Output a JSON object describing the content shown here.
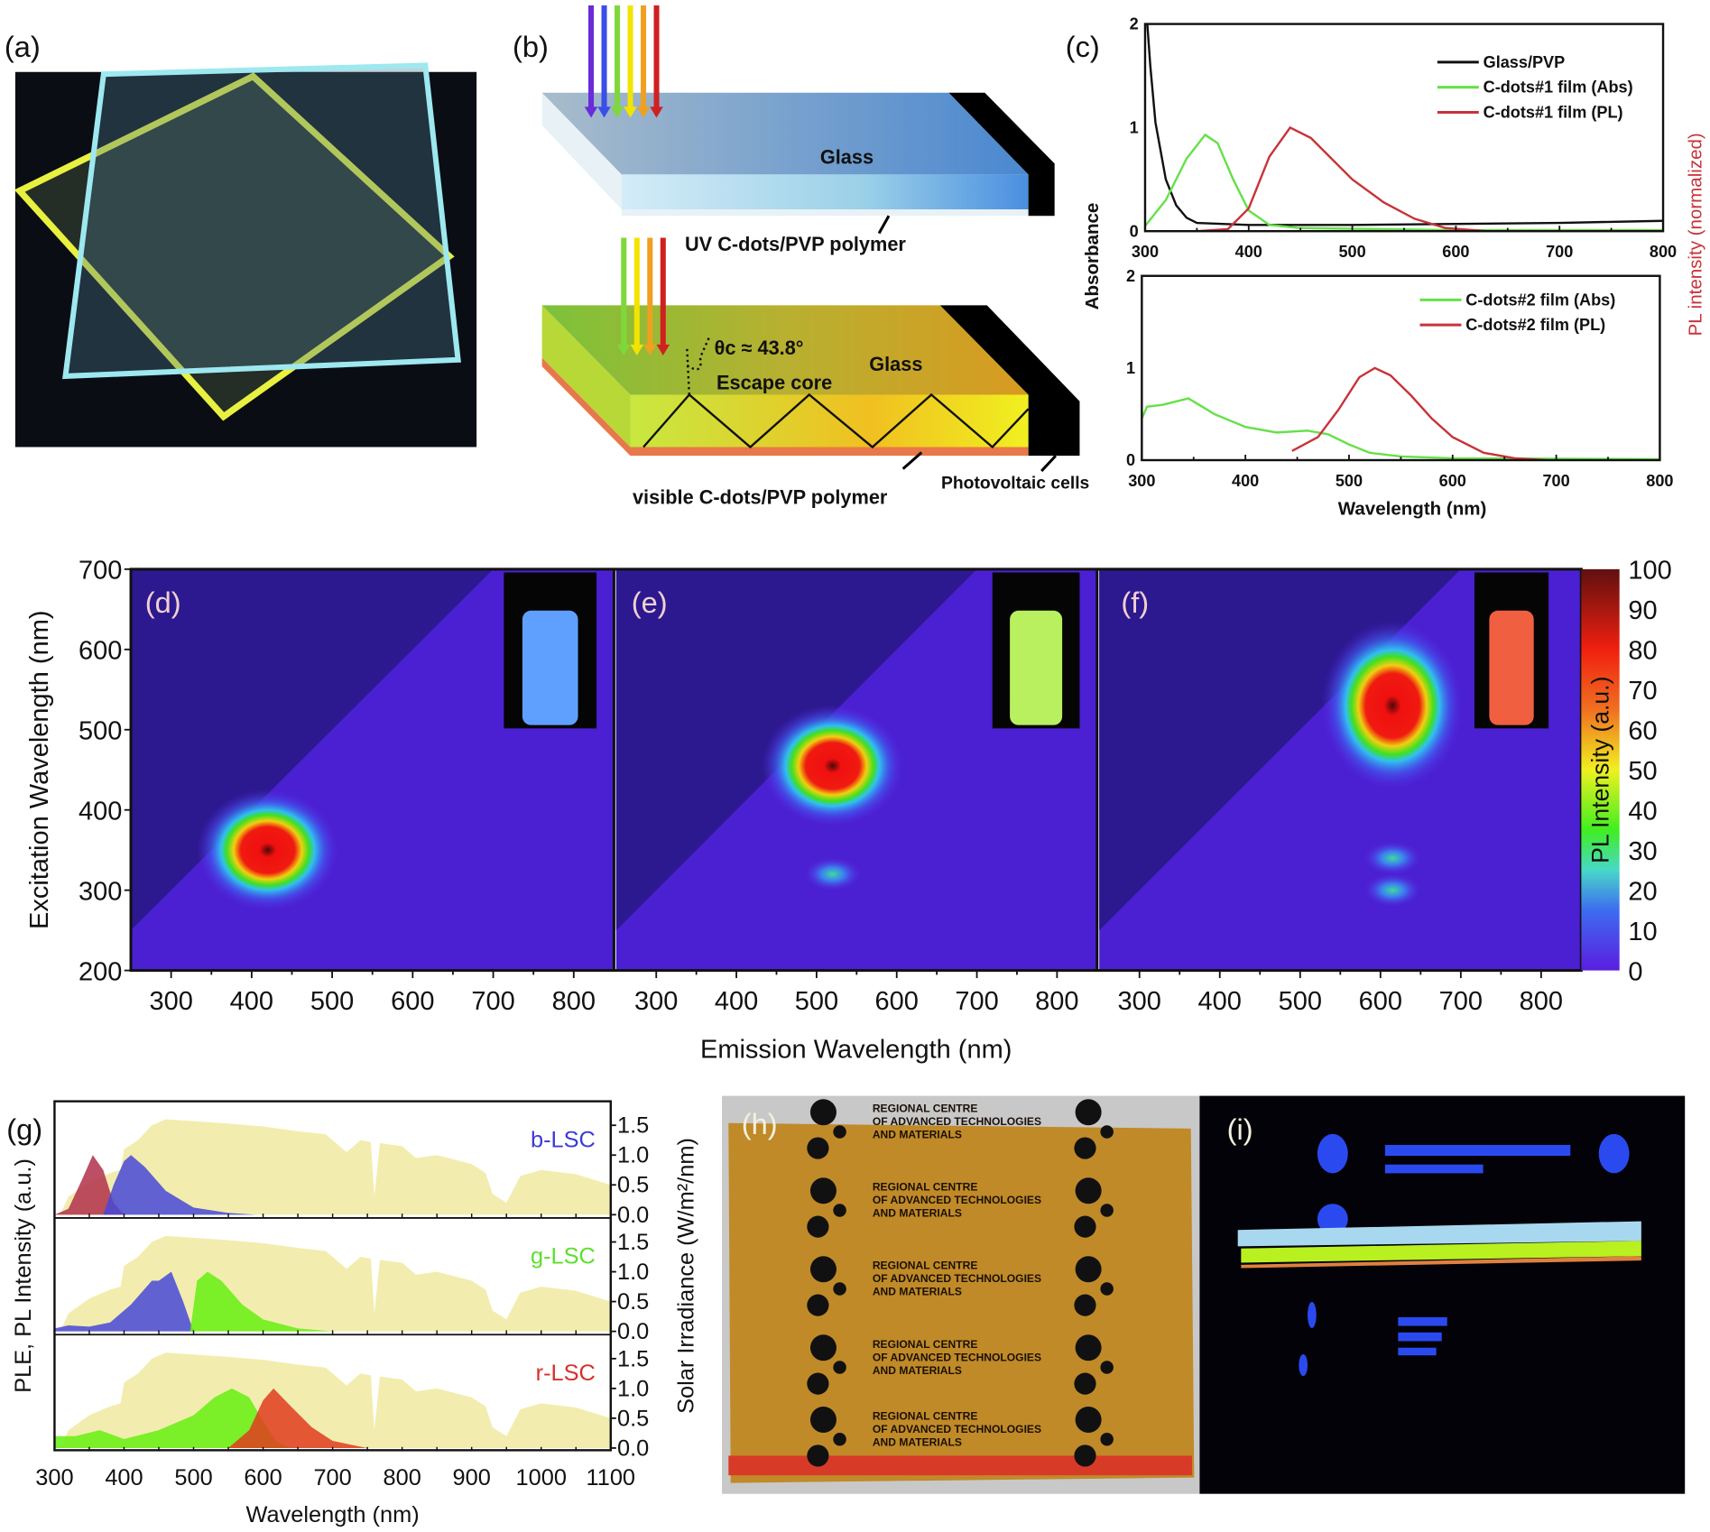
{
  "panels": {
    "a": {
      "label": "(a)"
    },
    "b": {
      "label": "(b)",
      "glass_top": "Glass",
      "uv_layer": "UV C-dots/PVP polymer",
      "angle": "θc ≈ 43.8°",
      "escape_core": "Escape core",
      "glass_bottom": "Glass",
      "visible_layer": "visible C-dots/PVP polymer",
      "pv_cells": "Photovoltaic cells",
      "arrow_colors_top": [
        "#6a2bd8",
        "#3a4ee8",
        "#7fd83a",
        "#f2e400",
        "#f0a020",
        "#d02020"
      ],
      "arrow_colors_bottom": [
        "#7fd83a",
        "#f2e400",
        "#f0a020",
        "#d02020"
      ]
    },
    "c": {
      "label": "(c)",
      "ylabel_left": "Absorbance",
      "ylabel_right": "PL intensity (normalized)",
      "xlabel": "Wavelength (nm)"
    },
    "d": {
      "label": "(d)"
    },
    "e": {
      "label": "(e)"
    },
    "f": {
      "label": "(f)"
    },
    "def": {
      "xlabel": "Emission Wavelength (nm)",
      "ylabel": "Excitation Wavelength (nm)",
      "colorbar_label": "PL Intensity (a.u.)"
    },
    "g": {
      "label": "(g)",
      "ylabel_left": "PLE, PL Intensity (a.u.)",
      "ylabel_right": "Solar Irradiance (W/m²/nm)",
      "xlabel": "Wavelength (nm)"
    },
    "h": {
      "label": "(h)",
      "photo_text": [
        "REGIONAL CENTRE",
        "OF ADVANCED TECHNOLOGIES",
        "AND MATERIALS"
      ]
    },
    "i": {
      "label": "(i)"
    }
  },
  "chart_data": [
    {
      "id": "c-top",
      "type": "line",
      "xlim": [
        300,
        800
      ],
      "ylim": [
        0,
        2
      ],
      "xticks": [
        300,
        400,
        500,
        600,
        700,
        800
      ],
      "yticks": [
        0,
        1,
        2
      ],
      "legend_position": "top-right",
      "series": [
        {
          "name": "Glass/PVP",
          "color": "#111111",
          "points": [
            [
              300,
              2.3
            ],
            [
              305,
              1.6
            ],
            [
              310,
              1.05
            ],
            [
              320,
              0.5
            ],
            [
              330,
              0.25
            ],
            [
              340,
              0.13
            ],
            [
              350,
              0.08
            ],
            [
              400,
              0.06
            ],
            [
              500,
              0.06
            ],
            [
              600,
              0.07
            ],
            [
              700,
              0.08
            ],
            [
              800,
              0.1
            ]
          ]
        },
        {
          "name": "C-dots#1 film (Abs)",
          "color": "#66e04a",
          "points": [
            [
              300,
              0.05
            ],
            [
              320,
              0.3
            ],
            [
              340,
              0.7
            ],
            [
              358,
              0.93
            ],
            [
              370,
              0.85
            ],
            [
              385,
              0.5
            ],
            [
              400,
              0.2
            ],
            [
              420,
              0.06
            ],
            [
              450,
              0.03
            ],
            [
              600,
              0.01
            ],
            [
              800,
              0.01
            ]
          ]
        },
        {
          "name": "C-dots#1 film (PL)",
          "color": "#c8333a",
          "points": [
            [
              350,
              0
            ],
            [
              380,
              0.02
            ],
            [
              400,
              0.22
            ],
            [
              420,
              0.72
            ],
            [
              440,
              1.0
            ],
            [
              460,
              0.9
            ],
            [
              480,
              0.7
            ],
            [
              500,
              0.5
            ],
            [
              530,
              0.28
            ],
            [
              560,
              0.12
            ],
            [
              590,
              0.03
            ],
            [
              630,
              0
            ]
          ]
        }
      ]
    },
    {
      "id": "c-bottom",
      "type": "line",
      "xlim": [
        300,
        800
      ],
      "ylim": [
        0,
        2
      ],
      "xticks": [
        300,
        400,
        500,
        600,
        700,
        800
      ],
      "yticks": [
        0,
        1,
        2
      ],
      "legend_position": "top-right",
      "series": [
        {
          "name": "C-dots#2 film (Abs)",
          "color": "#66e04a",
          "points": [
            [
              300,
              0.45
            ],
            [
              305,
              0.58
            ],
            [
              320,
              0.6
            ],
            [
              345,
              0.67
            ],
            [
              370,
              0.5
            ],
            [
              400,
              0.36
            ],
            [
              430,
              0.3
            ],
            [
              460,
              0.32
            ],
            [
              480,
              0.28
            ],
            [
              500,
              0.17
            ],
            [
              520,
              0.08
            ],
            [
              550,
              0.04
            ],
            [
              600,
              0.02
            ],
            [
              800,
              0.01
            ]
          ]
        },
        {
          "name": "C-dots#2 film (PL)",
          "color": "#c8333a",
          "points": [
            [
              445,
              0.1
            ],
            [
              470,
              0.25
            ],
            [
              490,
              0.55
            ],
            [
              510,
              0.9
            ],
            [
              525,
              1.0
            ],
            [
              540,
              0.92
            ],
            [
              560,
              0.7
            ],
            [
              580,
              0.45
            ],
            [
              600,
              0.25
            ],
            [
              630,
              0.08
            ],
            [
              660,
              0.02
            ],
            [
              690,
              0
            ]
          ]
        }
      ]
    },
    {
      "id": "def",
      "type": "heatmap",
      "xlim": [
        250,
        850
      ],
      "ylim": [
        200,
        700
      ],
      "xticks": [
        300,
        400,
        500,
        600,
        700,
        800
      ],
      "yticks": [
        200,
        300,
        400,
        500,
        600,
        700
      ],
      "colorbar": {
        "range": [
          0,
          100
        ],
        "ticks": [
          0,
          10,
          20,
          30,
          40,
          50,
          60,
          70,
          80,
          90,
          100
        ]
      },
      "maps": [
        {
          "panel": "d",
          "vial_color": "#5fa0ff",
          "peaks": [
            {
              "emission": 420,
              "excitation": 350,
              "intensity": 100
            }
          ]
        },
        {
          "panel": "e",
          "vial_color": "#b8f060",
          "peaks": [
            {
              "emission": 520,
              "excitation": 455,
              "intensity": 100
            },
            {
              "emission": 520,
              "excitation": 320,
              "intensity": 15
            }
          ]
        },
        {
          "panel": "f",
          "vial_color": "#f06040",
          "peaks": [
            {
              "emission": 615,
              "excitation": 530,
              "intensity": 100
            },
            {
              "emission": 615,
              "excitation": 340,
              "intensity": 25
            },
            {
              "emission": 615,
              "excitation": 300,
              "intensity": 30
            }
          ]
        }
      ]
    },
    {
      "id": "g",
      "type": "area",
      "xlim": [
        300,
        1100
      ],
      "ylim_right": [
        0,
        1.5
      ],
      "xticks": [
        300,
        400,
        500,
        600,
        700,
        800,
        900,
        1000,
        1100
      ],
      "yticks_right": [
        0.0,
        0.5,
        1.0,
        1.5
      ],
      "solar_irradiance": [
        [
          300,
          0
        ],
        [
          310,
          0.05
        ],
        [
          320,
          0.3
        ],
        [
          350,
          0.55
        ],
        [
          380,
          0.7
        ],
        [
          395,
          0.75
        ],
        [
          400,
          1.1
        ],
        [
          420,
          1.25
        ],
        [
          440,
          1.5
        ],
        [
          460,
          1.6
        ],
        [
          500,
          1.57
        ],
        [
          550,
          1.53
        ],
        [
          600,
          1.48
        ],
        [
          650,
          1.4
        ],
        [
          690,
          1.35
        ],
        [
          700,
          1.25
        ],
        [
          720,
          1.05
        ],
        [
          740,
          1.25
        ],
        [
          755,
          1.22
        ],
        [
          760,
          0.3
        ],
        [
          768,
          1.2
        ],
        [
          800,
          1.15
        ],
        [
          820,
          0.95
        ],
        [
          850,
          1.0
        ],
        [
          900,
          0.85
        ],
        [
          920,
          0.7
        ],
        [
          930,
          0.35
        ],
        [
          950,
          0.2
        ],
        [
          970,
          0.65
        ],
        [
          1000,
          0.75
        ],
        [
          1050,
          0.68
        ],
        [
          1100,
          0.5
        ]
      ],
      "subplots": [
        {
          "name": "b-LSC",
          "color": "#3b3bd8",
          "series": [
            {
              "color": "#b0304a",
              "points": [
                [
                  300,
                  0
                ],
                [
                  320,
                  0.1
                ],
                [
                  340,
                  0.6
                ],
                [
                  355,
                  1.0
                ],
                [
                  370,
                  0.75
                ],
                [
                  385,
                  0.2
                ],
                [
                  400,
                  0
                ]
              ]
            },
            {
              "color": "#4848d8",
              "points": [
                [
                  370,
                  0
                ],
                [
                  385,
                  0.5
                ],
                [
                  400,
                  0.9
                ],
                [
                  410,
                  1.0
                ],
                [
                  430,
                  0.8
                ],
                [
                  460,
                  0.4
                ],
                [
                  500,
                  0.12
                ],
                [
                  550,
                  0.03
                ],
                [
                  590,
                  0
                ]
              ]
            }
          ]
        },
        {
          "name": "g-LSC",
          "color": "#5ce02c",
          "series": [
            {
              "color": "#4848d8",
              "points": [
                [
                  300,
                  0.05
                ],
                [
                  320,
                  0.1
                ],
                [
                  350,
                  0.08
                ],
                [
                  380,
                  0.15
                ],
                [
                  410,
                  0.45
                ],
                [
                  440,
                  0.85
                ],
                [
                  450,
                  0.85
                ],
                [
                  468,
                  1.0
                ],
                [
                  485,
                  0.5
                ],
                [
                  500,
                  0
                ]
              ]
            },
            {
              "color": "#66ee10",
              "points": [
                [
                  495,
                  0
                ],
                [
                  505,
                  0.85
                ],
                [
                  520,
                  1.0
                ],
                [
                  540,
                  0.85
                ],
                [
                  570,
                  0.45
                ],
                [
                  600,
                  0.2
                ],
                [
                  650,
                  0.05
                ],
                [
                  700,
                  0
                ]
              ]
            }
          ]
        },
        {
          "name": "r-LSC",
          "color": "#d8302a",
          "series": [
            {
              "color": "#66ee10",
              "points": [
                [
                  300,
                  0.2
                ],
                [
                  330,
                  0.2
                ],
                [
                  365,
                  0.3
                ],
                [
                  400,
                  0.15
                ],
                [
                  450,
                  0.3
                ],
                [
                  500,
                  0.55
                ],
                [
                  530,
                  0.85
                ],
                [
                  555,
                  1.0
                ],
                [
                  580,
                  0.85
                ],
                [
                  600,
                  0.45
                ],
                [
                  620,
                  0.1
                ],
                [
                  640,
                  0
                ]
              ]
            },
            {
              "color": "#e03c20",
              "points": [
                [
                  550,
                  0
                ],
                [
                  580,
                  0.3
                ],
                [
                  600,
                  0.8
                ],
                [
                  615,
                  1.0
                ],
                [
                  640,
                  0.7
                ],
                [
                  670,
                  0.35
                ],
                [
                  700,
                  0.12
                ],
                [
                  750,
                  0
                ]
              ]
            }
          ]
        }
      ]
    }
  ]
}
